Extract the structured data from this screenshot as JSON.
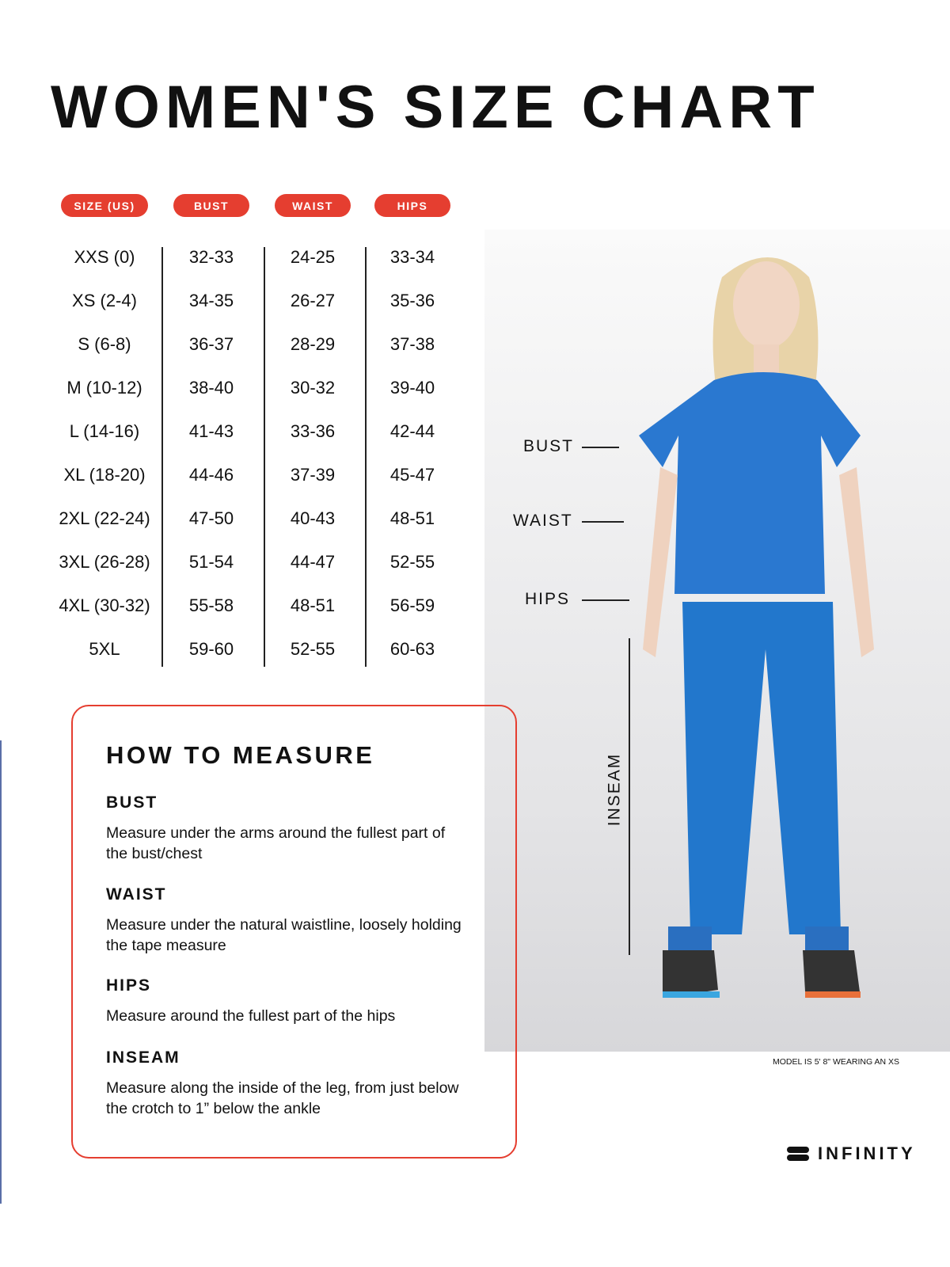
{
  "title": "WOMEN'S SIZE CHART",
  "columns": [
    "SIZE (US)",
    "BUST",
    "WAIST",
    "HIPS"
  ],
  "rows": [
    [
      "XXS (0)",
      "32-33",
      "24-25",
      "33-34"
    ],
    [
      "XS (2-4)",
      "34-35",
      "26-27",
      "35-36"
    ],
    [
      "S (6-8)",
      "36-37",
      "28-29",
      "37-38"
    ],
    [
      "M (10-12)",
      "38-40",
      "30-32",
      "39-40"
    ],
    [
      "L (14-16)",
      "41-43",
      "33-36",
      "42-44"
    ],
    [
      "XL (18-20)",
      "44-46",
      "37-39",
      "45-47"
    ],
    [
      "2XL (22-24)",
      "47-50",
      "40-43",
      "48-51"
    ],
    [
      "3XL (26-28)",
      "51-54",
      "44-47",
      "52-55"
    ],
    [
      "4XL (30-32)",
      "55-58",
      "48-51",
      "56-59"
    ],
    [
      "5XL",
      "59-60",
      "52-55",
      "60-63"
    ]
  ],
  "figure_labels": {
    "bust": "BUST",
    "waist": "WAIST",
    "hips": "HIPS",
    "inseam": "INSEAM"
  },
  "model_caption": "MODEL IS 5' 8\" WEARING AN XS",
  "brand": "INFINITY",
  "how_to": {
    "title": "HOW TO MEASURE",
    "sections": [
      {
        "heading": "BUST",
        "text": "Measure under the arms around the fullest part of the bust/chest"
      },
      {
        "heading": "WAIST",
        "text": "Measure under the natural waistline, loosely holding the tape measure"
      },
      {
        "heading": "HIPS",
        "text": "Measure around the fullest part of the hips"
      },
      {
        "heading": "INSEAM",
        "text": "Measure along the inside of the leg, from just below the crotch to 1” below the ankle"
      }
    ]
  },
  "colors": {
    "accent": "#e53e30",
    "garment": "#2a78d0"
  }
}
